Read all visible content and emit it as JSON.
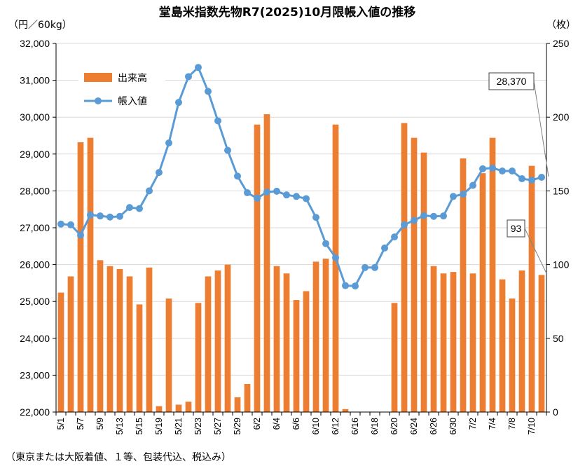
{
  "title": "堂島米指数先物R7(2025)10月限帳入値の推移",
  "left_unit": "（円／60kg）",
  "right_unit": "（枚）",
  "footnote": "（東京または大阪着値、１等、包装代込、税込み）",
  "colors": {
    "bar": "#ED7D31",
    "line": "#5B9BD5",
    "grid": "#D9D9D9",
    "axis": "#000000"
  },
  "chart_data": {
    "type": "bar+line",
    "title": "堂島米指数先物R7(2025)10月限帳入値の推移",
    "ylabel_left": "（円／60kg）",
    "ylabel_right": "（枚）",
    "ylim_left": [
      22000,
      32000
    ],
    "ylim_right": [
      0,
      250
    ],
    "yticks_left": [
      "22,000",
      "23,000",
      "24,000",
      "25,000",
      "26,000",
      "27,000",
      "28,000",
      "29,000",
      "30,000",
      "31,000",
      "32,000"
    ],
    "yticks_right": [
      "0",
      "50",
      "100",
      "150",
      "200",
      "250"
    ],
    "grid": true,
    "legend_position": "top-left",
    "x": [
      "5/1",
      "5/2",
      "5/7",
      "5/8",
      "5/9",
      "5/12",
      "5/13",
      "5/14",
      "5/15",
      "5/16",
      "5/19",
      "5/20",
      "5/21",
      "5/22",
      "5/23",
      "5/26",
      "5/27",
      "5/28",
      "5/29",
      "5/30",
      "6/2",
      "6/3",
      "6/4",
      "6/5",
      "6/6",
      "6/9",
      "6/10",
      "6/11",
      "6/12",
      "6/13",
      "6/16",
      "6/17",
      "6/18",
      "6/19",
      "6/20",
      "6/23",
      "6/24",
      "6/25",
      "6/26",
      "6/27",
      "6/30",
      "7/1",
      "7/2",
      "7/3",
      "7/4",
      "7/7",
      "7/8",
      "7/9",
      "7/10",
      "7/11"
    ],
    "x_tick_labels": [
      "5/1",
      "5/7",
      "5/9",
      "5/13",
      "5/15",
      "5/19",
      "5/21",
      "5/23",
      "5/27",
      "5/29",
      "6/2",
      "6/4",
      "6/6",
      "6/10",
      "6/12",
      "6/16",
      "6/18",
      "6/20",
      "6/24",
      "6/26",
      "6/30",
      "7/2",
      "7/4",
      "7/8",
      "7/10"
    ],
    "series": [
      {
        "name": "出来高",
        "type": "bar",
        "axis": "right",
        "values": [
          81,
          92,
          183,
          186,
          103,
          99,
          97,
          92,
          73,
          98,
          4,
          77,
          5,
          7,
          74,
          92,
          96,
          100,
          10,
          19,
          195,
          202,
          99,
          94,
          76,
          82,
          102,
          104,
          195,
          2,
          0,
          0,
          0,
          0,
          74,
          196,
          186,
          176,
          99,
          94,
          95,
          172,
          94,
          162,
          186,
          90,
          77,
          96,
          167,
          93
        ]
      },
      {
        "name": "帳入値",
        "type": "line",
        "axis": "left",
        "values": [
          27100,
          27080,
          26800,
          27350,
          27320,
          27290,
          27310,
          27550,
          27520,
          28000,
          28500,
          29300,
          30400,
          31100,
          31350,
          30700,
          29900,
          29100,
          28400,
          27950,
          27800,
          27970,
          27990,
          27890,
          27850,
          27790,
          27280,
          26570,
          26190,
          25430,
          25420,
          25920,
          25920,
          26450,
          26750,
          27080,
          27200,
          27330,
          27310,
          27320,
          27850,
          27910,
          28150,
          28600,
          28620,
          28540,
          28540,
          28330,
          28290,
          28370
        ]
      }
    ],
    "annotations": [
      {
        "label": "28,370",
        "target": "帳入値 7/11"
      },
      {
        "label": "93",
        "target": "出来高 7/11"
      }
    ]
  }
}
